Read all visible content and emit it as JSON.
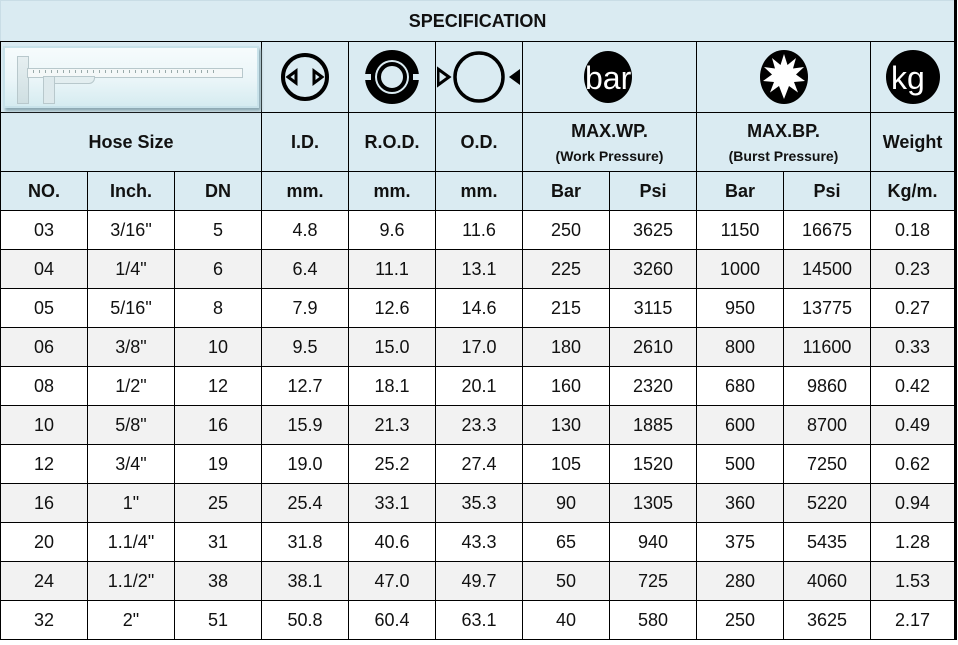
{
  "title": "SPECIFICATION",
  "icons": {
    "caliper": "caliper-image",
    "id": "inner-diameter-icon",
    "rod": "reinforcement-outer-diameter-icon",
    "od": "outer-diameter-icon",
    "bar": "bar",
    "burst": "burst-star-icon",
    "kg": "kg"
  },
  "headers": {
    "hose_size": "Hose Size",
    "id": "I.D.",
    "rod": "R.O.D.",
    "od": "O.D.",
    "max_wp": "MAX.WP.",
    "max_wp_sub": "(Work Pressure)",
    "max_bp": "MAX.BP.",
    "max_bp_sub": "(Burst Pressure)",
    "weight": "Weight"
  },
  "units": [
    "NO.",
    "Inch.",
    "DN",
    "mm.",
    "mm.",
    "mm.",
    "Bar",
    "Psi",
    "Bar",
    "Psi",
    "Kg/m."
  ],
  "rows": [
    [
      "03",
      "3/16\"",
      "5",
      "4.8",
      "9.6",
      "11.6",
      "250",
      "3625",
      "1150",
      "16675",
      "0.18"
    ],
    [
      "04",
      "1/4\"",
      "6",
      "6.4",
      "11.1",
      "13.1",
      "225",
      "3260",
      "1000",
      "14500",
      "0.23"
    ],
    [
      "05",
      "5/16\"",
      "8",
      "7.9",
      "12.6",
      "14.6",
      "215",
      "3115",
      "950",
      "13775",
      "0.27"
    ],
    [
      "06",
      "3/8\"",
      "10",
      "9.5",
      "15.0",
      "17.0",
      "180",
      "2610",
      "800",
      "11600",
      "0.33"
    ],
    [
      "08",
      "1/2\"",
      "12",
      "12.7",
      "18.1",
      "20.1",
      "160",
      "2320",
      "680",
      "9860",
      "0.42"
    ],
    [
      "10",
      "5/8\"",
      "16",
      "15.9",
      "21.3",
      "23.3",
      "130",
      "1885",
      "600",
      "8700",
      "0.49"
    ],
    [
      "12",
      "3/4\"",
      "19",
      "19.0",
      "25.2",
      "27.4",
      "105",
      "1520",
      "500",
      "7250",
      "0.62"
    ],
    [
      "16",
      "1\"",
      "25",
      "25.4",
      "33.1",
      "35.3",
      "90",
      "1305",
      "360",
      "5220",
      "0.94"
    ],
    [
      "20",
      "1.1/4\"",
      "31",
      "31.8",
      "40.6",
      "43.3",
      "65",
      "940",
      "375",
      "5435",
      "1.28"
    ],
    [
      "24",
      "1.1/2\"",
      "38",
      "38.1",
      "47.0",
      "49.7",
      "50",
      "725",
      "280",
      "4060",
      "1.53"
    ],
    [
      "32",
      "2\"",
      "51",
      "50.8",
      "60.4",
      "63.1",
      "40",
      "580",
      "250",
      "3625",
      "2.17"
    ]
  ],
  "colors": {
    "header_bg": "#daebf2",
    "alt_row_bg": "#f2f2f2",
    "border": "#000000"
  }
}
